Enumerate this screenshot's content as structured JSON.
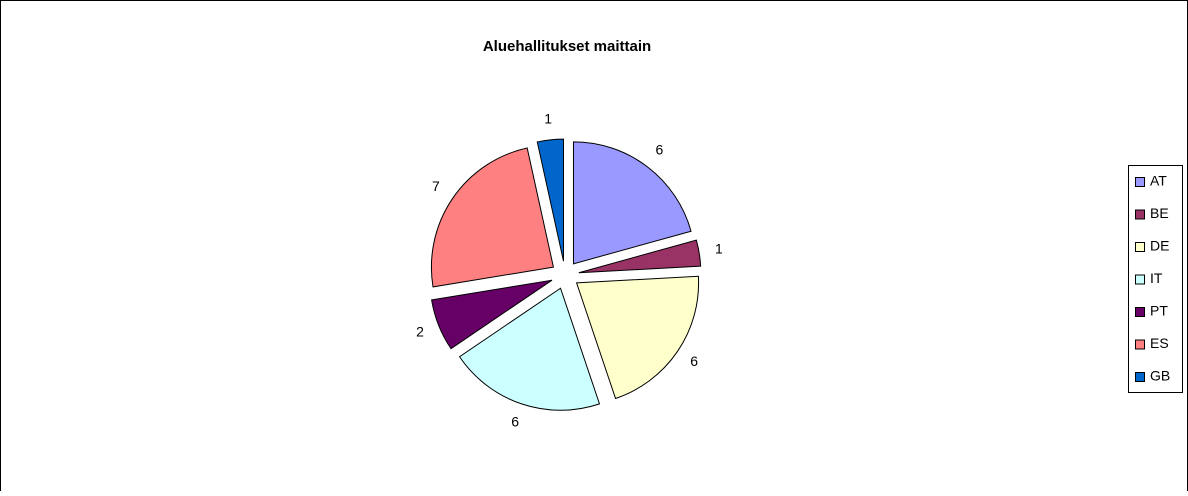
{
  "chart_data": {
    "type": "pie",
    "title": "Aluehallitukset maittain",
    "categories": [
      "AT",
      "BE",
      "DE",
      "IT",
      "PT",
      "ES",
      "GB"
    ],
    "values": [
      6,
      1,
      6,
      6,
      2,
      7,
      1
    ],
    "colors": [
      "#9999ff",
      "#993366",
      "#ffffcc",
      "#ccffff",
      "#660066",
      "#ff8080",
      "#0066cc"
    ],
    "legend": "right"
  }
}
